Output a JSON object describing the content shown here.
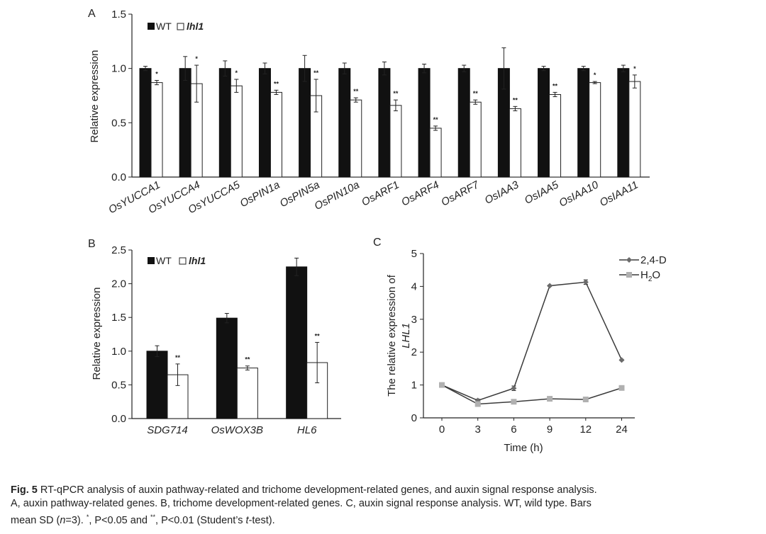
{
  "colors": {
    "wt": "#111111",
    "mut": "#ffffff",
    "axis": "#222222",
    "s24d": "#3a3a3a",
    "h2o": "#b0b0b0"
  },
  "panelA": {
    "label": "A",
    "legend_wt": "WT",
    "legend_mut": "lhl1"
  },
  "panelB": {
    "label": "B",
    "legend_wt": "WT",
    "legend_mut": "lhl1"
  },
  "panelC": {
    "label": "C"
  },
  "chart_data": [
    {
      "id": "A",
      "type": "bar",
      "title": "",
      "ylabel": "Relative expression",
      "xlabel": "",
      "ylim": [
        0,
        1.5
      ],
      "yticks": [
        "0.0",
        "0.5",
        "1.0",
        "1.5"
      ],
      "categories": [
        "OsYUCCA1",
        "OsYUCCA4",
        "OsYUCCA5",
        "OsPIN1a",
        "OsPIN5a",
        "OsPIN10a",
        "OsARF1",
        "OsARF4",
        "OsARF7",
        "OsIAA3",
        "OsIAA5",
        "OsIAA10",
        "OsIAA11"
      ],
      "series": [
        {
          "name": "WT",
          "values": [
            1.0,
            1.0,
            1.0,
            1.0,
            1.0,
            1.0,
            1.0,
            1.0,
            1.0,
            1.0,
            1.0,
            1.0,
            1.0
          ],
          "errors": [
            0.02,
            0.11,
            0.07,
            0.05,
            0.12,
            0.05,
            0.06,
            0.04,
            0.03,
            0.19,
            0.02,
            0.02,
            0.03
          ]
        },
        {
          "name": "lhl1",
          "values": [
            0.87,
            0.86,
            0.84,
            0.78,
            0.75,
            0.71,
            0.66,
            0.45,
            0.69,
            0.63,
            0.76,
            0.87,
            0.88
          ],
          "errors": [
            0.02,
            0.17,
            0.06,
            0.02,
            0.15,
            0.02,
            0.05,
            0.02,
            0.02,
            0.02,
            0.02,
            0.01,
            0.06
          ]
        }
      ],
      "significance": [
        "*",
        "*",
        "*",
        "**",
        "**",
        "**",
        "**",
        "**",
        "**",
        "**",
        "**",
        "*",
        "*"
      ]
    },
    {
      "id": "B",
      "type": "bar",
      "title": "",
      "ylabel": "Relative expression",
      "xlabel": "",
      "ylim": [
        0,
        2.5
      ],
      "yticks": [
        "0.0",
        "0.5",
        "1.0",
        "1.5",
        "2.0",
        "2.5"
      ],
      "categories": [
        "SDG714",
        "OsWOX3B",
        "HL6"
      ],
      "series": [
        {
          "name": "WT",
          "values": [
            1.0,
            1.49,
            2.25
          ],
          "errors": [
            0.08,
            0.07,
            0.13
          ]
        },
        {
          "name": "lhl1",
          "values": [
            0.65,
            0.75,
            0.83
          ],
          "errors": [
            0.16,
            0.03,
            0.3
          ]
        }
      ],
      "significance": [
        "**",
        "**",
        "**"
      ]
    },
    {
      "id": "C",
      "type": "line",
      "title": "",
      "ylabel_prefix": "The relative expression of",
      "ylabel_gene": "LHL1",
      "xlabel": "Time (h)",
      "ylim": [
        0,
        5
      ],
      "yticks": [
        "0",
        "1",
        "2",
        "3",
        "4",
        "5"
      ],
      "x": [
        "0",
        "3",
        "6",
        "9",
        "12",
        "24"
      ],
      "series": [
        {
          "name": "2,4-D",
          "values": [
            1.0,
            0.53,
            0.9,
            4.02,
            4.13,
            1.76
          ],
          "errors": [
            0.04,
            0.04,
            0.07,
            0.02,
            0.07,
            0.02
          ]
        },
        {
          "name": "H2O",
          "label_main": "H",
          "label_sub": "2",
          "label_tail": "O",
          "values": [
            1.0,
            0.42,
            0.49,
            0.58,
            0.56,
            0.91
          ],
          "errors": [
            0.04,
            0.02,
            0.02,
            0.02,
            0.02,
            0.06
          ]
        }
      ]
    }
  ],
  "caption": {
    "fig_label": "Fig. 5",
    "line1": "RT-qPCR analysis of auxin pathway-related and trichome development-related genes, and auxin signal response analysis.",
    "line2": "A, auxin pathway-related genes.  B, trichome development-related genes.  C, auxin signal response analysis.  WT, wild type.  Bars",
    "line3_a": "mean SD (",
    "line3_n": "n",
    "line3_b": "=3).",
    "line3_star1": "*",
    "line3_c": ", P<0.05 and",
    "line3_star2": "**",
    "line3_d": ", P<0.01 (Student’s",
    "line3_t": "t",
    "line3_e": "-test)."
  }
}
